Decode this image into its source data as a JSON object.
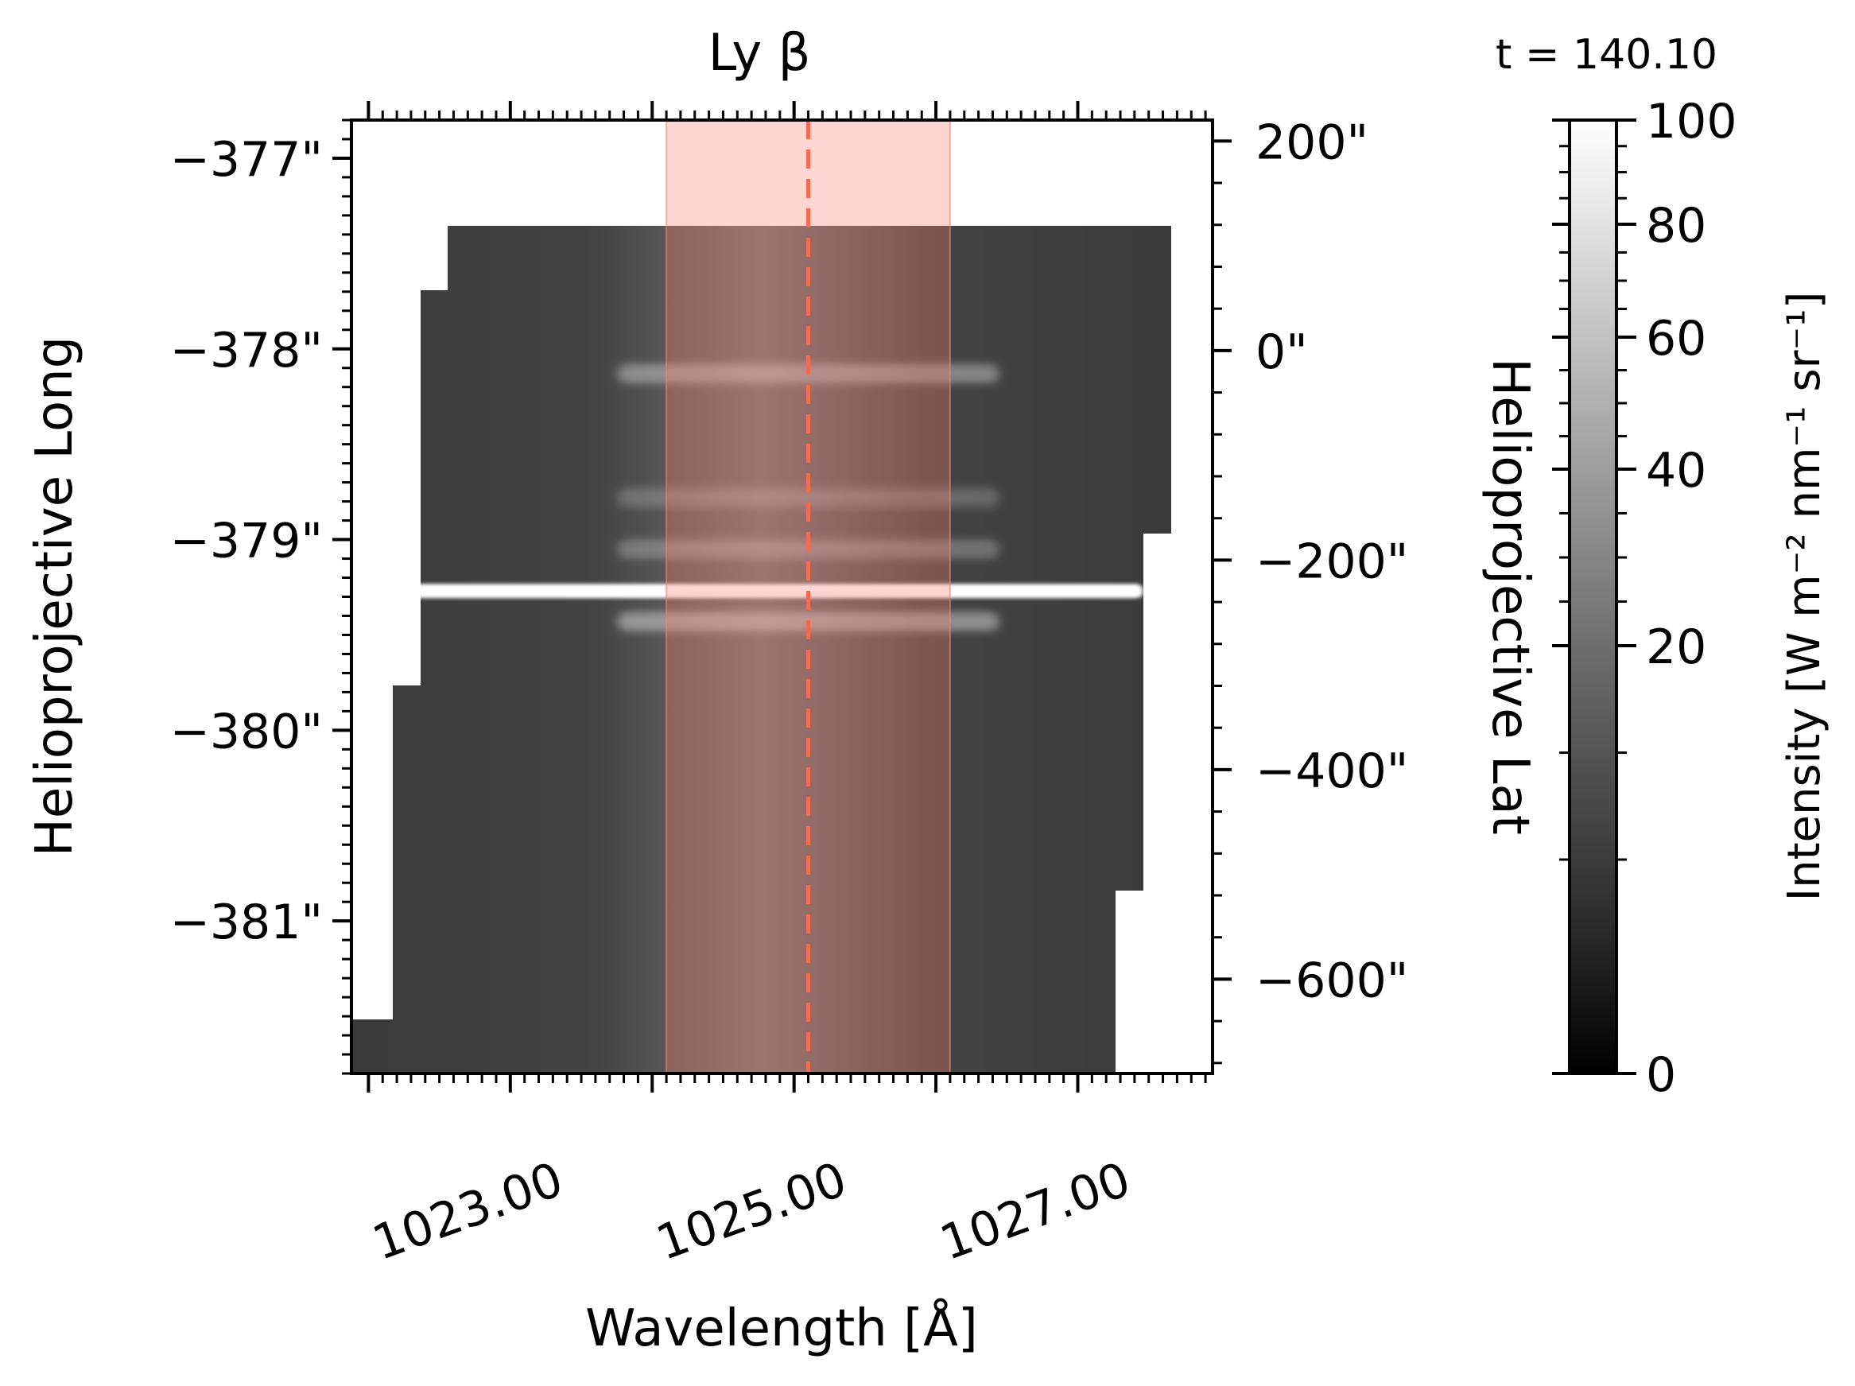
{
  "chart_data": {
    "type": "heatmap",
    "title": "Ly β",
    "title_color": "#f56a50",
    "annotation": "t = 140.10",
    "xlabel": "Wavelength [Å]",
    "xlim": [
      1021.88,
      1027.95
    ],
    "x_ticks": [
      1023.0,
      1025.0,
      1027.0
    ],
    "x_tick_labels": [
      "1023.00",
      "1025.00",
      "1027.00"
    ],
    "ylabel_left": "Helioprojective Long",
    "ylim_left": [
      -381.8,
      -376.8
    ],
    "y_left_ticks": [
      -377,
      -378,
      -379,
      -380,
      -381
    ],
    "y_left_tick_labels": [
      "−377\"",
      "−378\"",
      "−379\"",
      "−380\"",
      "−381\""
    ],
    "ylabel_right": "Helioprojective Lat",
    "ylim_right": [
      -690,
      220
    ],
    "y_right_ticks": [
      200,
      0,
      -200,
      -400,
      -600
    ],
    "y_right_tick_labels": [
      "200\"",
      "0\"",
      "−200\"",
      "−400\"",
      "−600\""
    ],
    "highlight_band": {
      "from": 1024.1,
      "to": 1026.1,
      "color": "#fa8072"
    },
    "line_center": 1025.1,
    "line_color": "#f56a50",
    "colorbar": {
      "label": "Intensity [W m⁻² nm⁻¹ sr⁻¹]",
      "range": [
        0,
        100
      ],
      "ticks": [
        0,
        20,
        40,
        60,
        80,
        100
      ],
      "tick_labels": [
        "0",
        "20",
        "40",
        "60",
        "80",
        "100"
      ],
      "colormap": "gray"
    },
    "emission_rows": [
      {
        "long": -379.27,
        "intensity": 100,
        "note": "bright band across full spectrum"
      },
      {
        "long": -379.43,
        "intensity": 40
      },
      {
        "long": -378.13,
        "intensity": 35
      },
      {
        "long": -378.78,
        "intensity": 20
      },
      {
        "long": -379.05,
        "intensity": 25
      }
    ]
  }
}
